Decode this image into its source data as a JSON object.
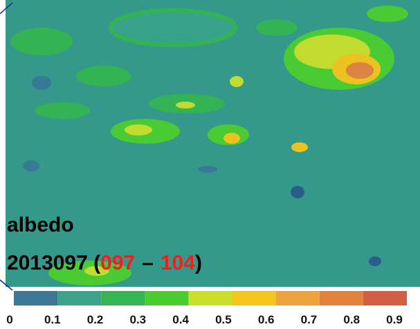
{
  "map": {
    "variable": "albedo",
    "date": "2013097 (",
    "start_day": "097",
    "separator": "–",
    "end_day": "104",
    "close": ")"
  },
  "colorbar": {
    "ticks": [
      0,
      0.1,
      0.2,
      0.3,
      0.4,
      0.5,
      0.6,
      0.7,
      0.8,
      0.9
    ],
    "colors": [
      "#3b7896",
      "#3aa38a",
      "#34b552",
      "#4ccd2f",
      "#c9df2a",
      "#f6c51b",
      "#eda23b",
      "#e3823f",
      "#d45e43"
    ]
  }
}
